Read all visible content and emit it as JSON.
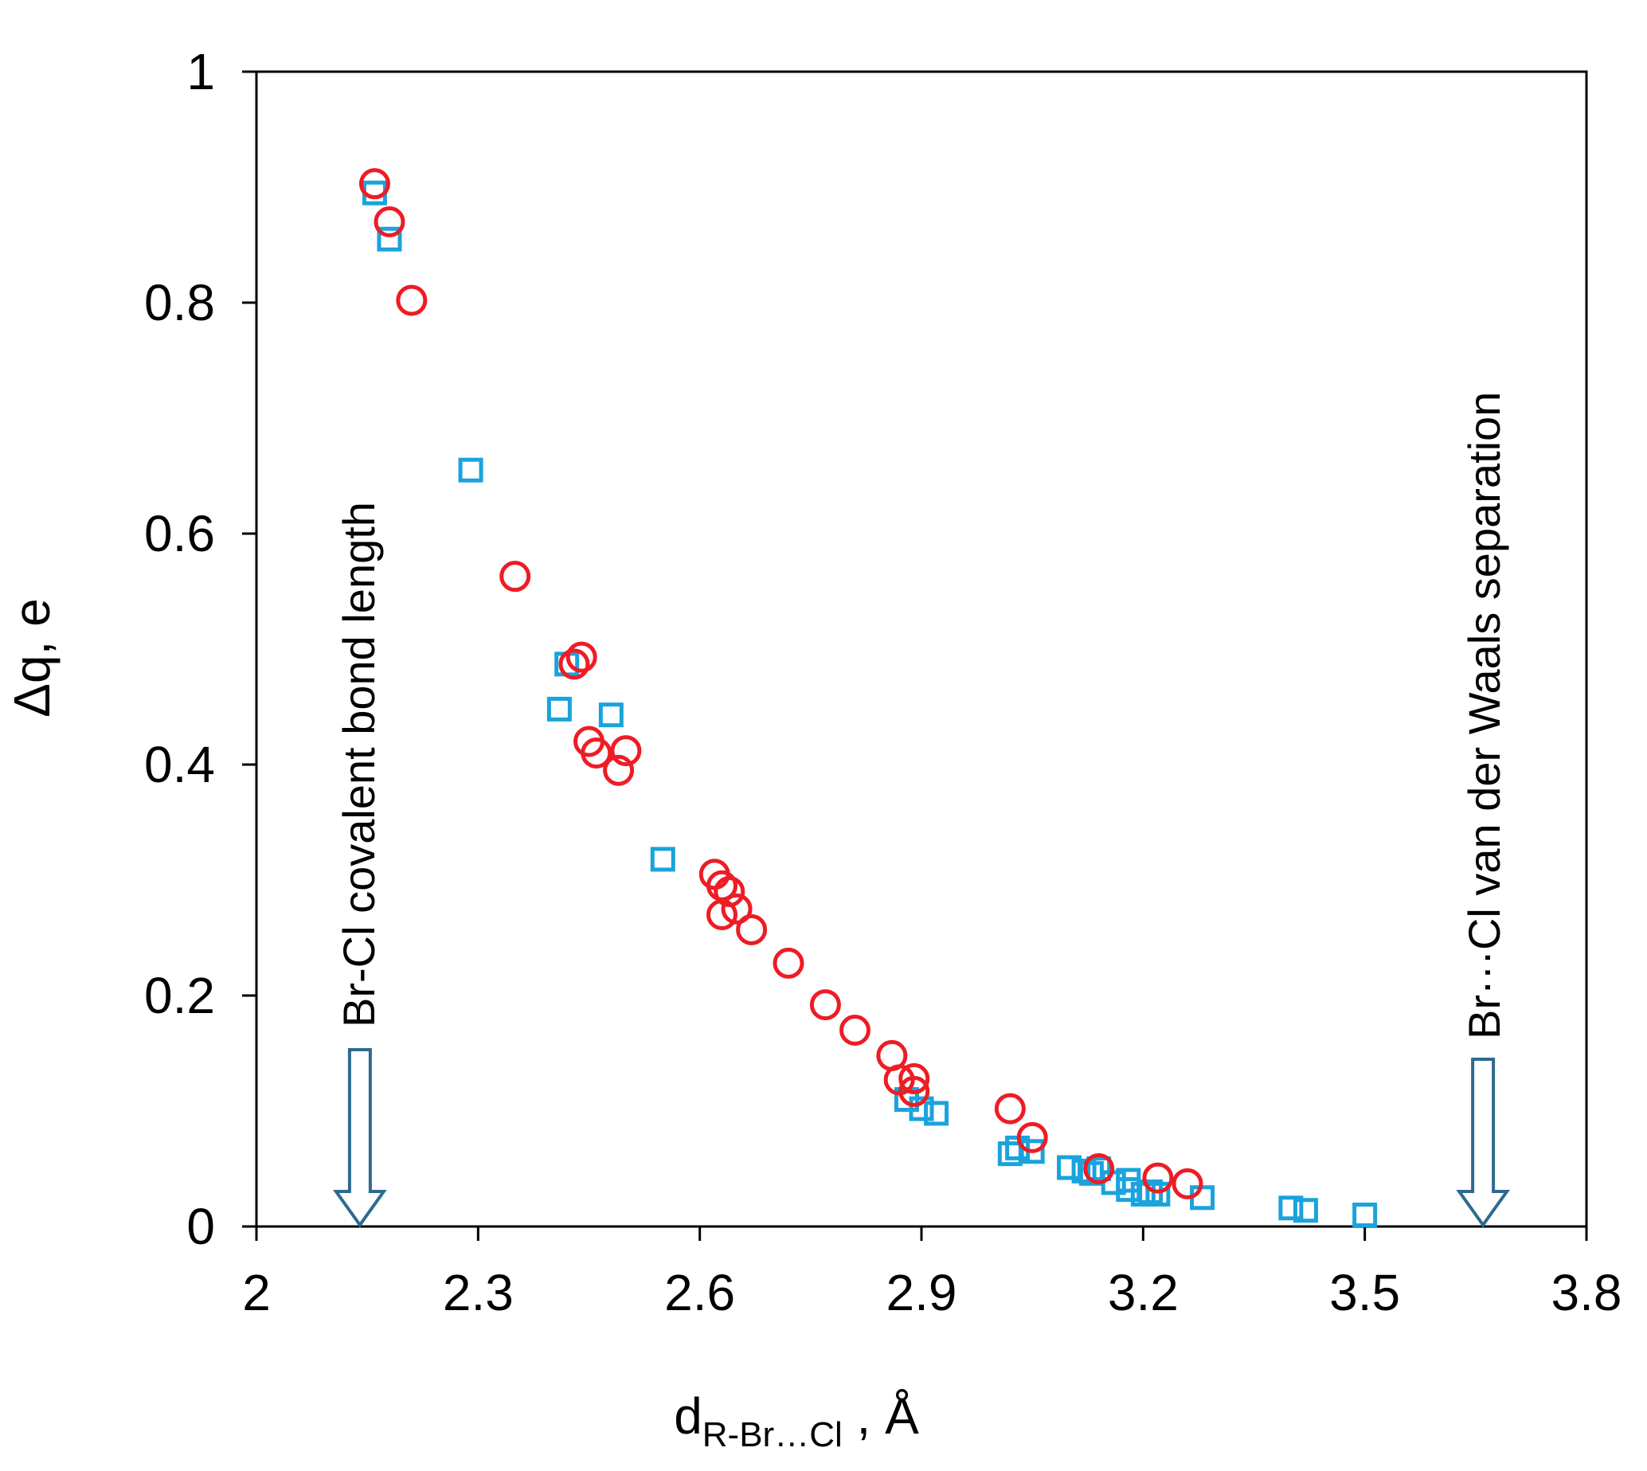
{
  "chart_data": {
    "type": "scatter",
    "title": "",
    "xlabel": "d",
    "xlabel_subscript": "R-Br…Cl",
    "xlabel_suffix": " , Å",
    "ylabel": "Δq, e",
    "xlim": [
      2,
      3.8
    ],
    "ylim": [
      0,
      1
    ],
    "x_ticks": [
      2,
      2.3,
      2.6,
      2.9,
      3.2,
      3.5,
      3.8
    ],
    "x_tick_labels": [
      "2",
      "2.3",
      "2.6",
      "2.9",
      "3.2",
      "3.5",
      "3.8"
    ],
    "y_ticks": [
      0,
      0.2,
      0.4,
      0.6,
      0.8,
      1
    ],
    "y_tick_labels": [
      "0",
      "0.2",
      "0.4",
      "0.6",
      "0.8",
      "1"
    ],
    "grid": false,
    "series": [
      {
        "name": "squares",
        "marker": "square",
        "color": "#1aa3dd",
        "points": [
          [
            2.16,
            0.895
          ],
          [
            2.18,
            0.855
          ],
          [
            2.29,
            0.655
          ],
          [
            2.41,
            0.448
          ],
          [
            2.42,
            0.487
          ],
          [
            2.48,
            0.443
          ],
          [
            2.55,
            0.318
          ],
          [
            2.88,
            0.11
          ],
          [
            2.9,
            0.102
          ],
          [
            2.92,
            0.098
          ],
          [
            3.02,
            0.063
          ],
          [
            3.03,
            0.068
          ],
          [
            3.05,
            0.065
          ],
          [
            3.1,
            0.051
          ],
          [
            3.12,
            0.048
          ],
          [
            3.13,
            0.046
          ],
          [
            3.14,
            0.05
          ],
          [
            3.16,
            0.038
          ],
          [
            3.18,
            0.04
          ],
          [
            3.18,
            0.032
          ],
          [
            3.2,
            0.028
          ],
          [
            3.21,
            0.03
          ],
          [
            3.22,
            0.028
          ],
          [
            3.28,
            0.025
          ],
          [
            3.4,
            0.016
          ],
          [
            3.42,
            0.014
          ],
          [
            3.5,
            0.01
          ]
        ]
      },
      {
        "name": "circles",
        "marker": "circle",
        "color": "#ee1c25",
        "points": [
          [
            2.16,
            0.903
          ],
          [
            2.18,
            0.87
          ],
          [
            2.21,
            0.802
          ],
          [
            2.35,
            0.563
          ],
          [
            2.43,
            0.487
          ],
          [
            2.44,
            0.493
          ],
          [
            2.45,
            0.42
          ],
          [
            2.46,
            0.41
          ],
          [
            2.49,
            0.395
          ],
          [
            2.5,
            0.412
          ],
          [
            2.62,
            0.305
          ],
          [
            2.63,
            0.295
          ],
          [
            2.64,
            0.29
          ],
          [
            2.65,
            0.275
          ],
          [
            2.63,
            0.27
          ],
          [
            2.67,
            0.257
          ],
          [
            2.72,
            0.228
          ],
          [
            2.77,
            0.192
          ],
          [
            2.81,
            0.17
          ],
          [
            2.86,
            0.148
          ],
          [
            2.87,
            0.127
          ],
          [
            2.89,
            0.128
          ],
          [
            2.89,
            0.117
          ],
          [
            3.02,
            0.102
          ],
          [
            3.05,
            0.077
          ],
          [
            3.14,
            0.05
          ],
          [
            3.22,
            0.042
          ],
          [
            3.26,
            0.037
          ]
        ]
      }
    ],
    "annotations": [
      {
        "text": "Br-Cl covalent bond length",
        "arrow_x": 2.14,
        "orientation": "vertical",
        "arrow": "down"
      },
      {
        "text": "Br···Cl van der Waals separation",
        "arrow_x": 3.66,
        "orientation": "vertical",
        "arrow": "down"
      }
    ],
    "colors": {
      "axis": "#000000",
      "arrow_outline": "#2e6a8f",
      "square_marker": "#1aa3dd",
      "circle_marker": "#ee1c25"
    }
  }
}
